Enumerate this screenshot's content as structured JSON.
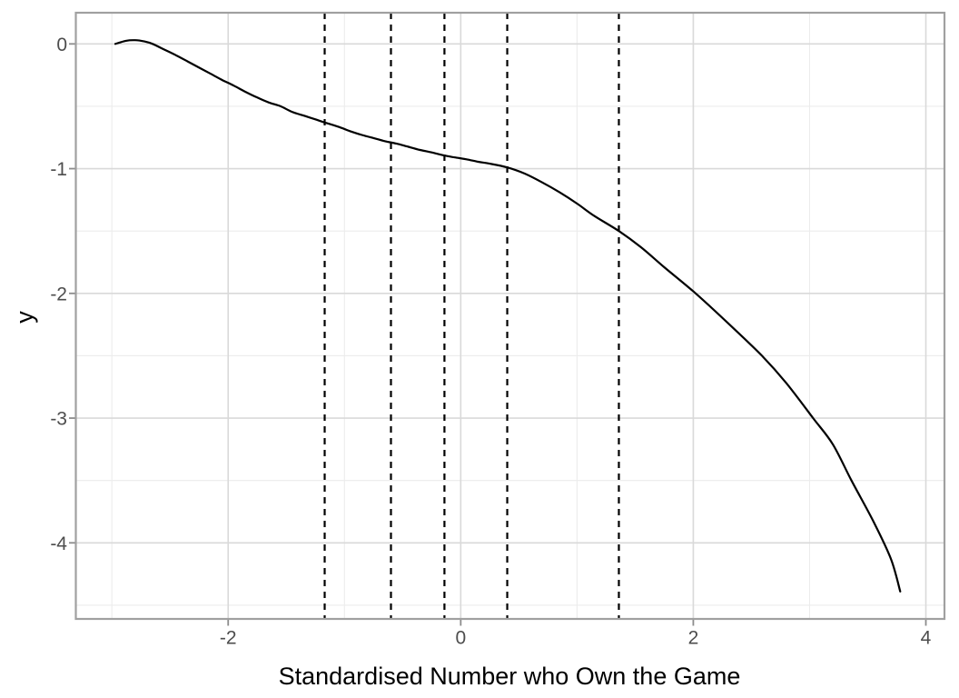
{
  "figure": {
    "background": "#ffffff",
    "title": ""
  },
  "chart_data": {
    "type": "line",
    "title": "",
    "xlabel": "Standardised Number who Own the Game",
    "ylabel": "y",
    "xlim": [
      -3.31,
      4.16
    ],
    "ylim": [
      -4.61,
      0.25
    ],
    "x_ticks": {
      "values": [
        -2,
        0,
        2,
        4
      ],
      "labels": [
        "-2",
        "0",
        "2",
        "4"
      ]
    },
    "y_ticks": {
      "values": [
        0,
        -1,
        -2,
        -3,
        -4
      ],
      "labels": [
        "0",
        "-1",
        "-2",
        "-3",
        "-4"
      ]
    },
    "x_minor": [
      -3,
      -1,
      1,
      3
    ],
    "y_minor": [
      -4.5,
      -3.5,
      -2.5,
      -1.5,
      -0.5
    ],
    "grid": "major+minor",
    "legend": "none",
    "vlines": {
      "x": [
        -1.17,
        -0.6,
        -0.14,
        0.4,
        1.36
      ],
      "linetype": "dashed",
      "color": "#000000"
    },
    "series": [
      {
        "name": "smoothed-curve",
        "type": "line",
        "color": "#000000",
        "x": [
          -2.97,
          -2.88,
          -2.8,
          -2.72,
          -2.65,
          -2.55,
          -2.45,
          -2.35,
          -2.25,
          -2.15,
          -2.05,
          -1.95,
          -1.85,
          -1.75,
          -1.65,
          -1.55,
          -1.45,
          -1.35,
          -1.25,
          -1.17,
          -1.05,
          -0.95,
          -0.85,
          -0.75,
          -0.65,
          -0.55,
          -0.45,
          -0.35,
          -0.25,
          -0.14,
          -0.05,
          0.05,
          0.15,
          0.25,
          0.4,
          0.55,
          0.7,
          0.85,
          1.0,
          1.15,
          1.36,
          1.55,
          1.75,
          2.02,
          2.3,
          2.59,
          2.8,
          3.03,
          3.2,
          3.36,
          3.55,
          3.7,
          3.78
        ],
        "y": [
          0.0,
          0.025,
          0.03,
          0.02,
          0.0,
          -0.045,
          -0.09,
          -0.14,
          -0.19,
          -0.24,
          -0.29,
          -0.335,
          -0.385,
          -0.43,
          -0.47,
          -0.5,
          -0.545,
          -0.575,
          -0.605,
          -0.63,
          -0.665,
          -0.7,
          -0.73,
          -0.755,
          -0.78,
          -0.8,
          -0.825,
          -0.85,
          -0.87,
          -0.895,
          -0.91,
          -0.925,
          -0.945,
          -0.96,
          -0.99,
          -1.04,
          -1.11,
          -1.19,
          -1.28,
          -1.38,
          -1.5,
          -1.63,
          -1.79,
          -2.0,
          -2.24,
          -2.5,
          -2.72,
          -3.0,
          -3.21,
          -3.5,
          -3.83,
          -4.13,
          -4.39
        ]
      }
    ],
    "colors": {
      "curve": "#000000",
      "panel_border": "#a0a0a0",
      "grid_major": "#d9d9d9",
      "grid_minor": "#ececec",
      "tick": "#8c8c8c",
      "tick_label": "#4d4d4d",
      "axis_title": "#000000",
      "panel_background": "#ffffff"
    }
  }
}
